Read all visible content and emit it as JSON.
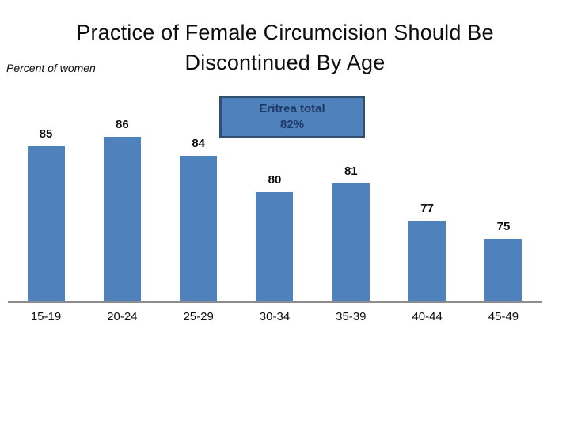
{
  "header": {
    "title_line1": "Practice of Female Circumcision Should Be",
    "title_line2": "Discontinued By Age"
  },
  "chart_data": {
    "type": "bar",
    "title": "Practice of Female Circumcision Should Be Discontinued By Age",
    "ylabel": "Percent of women",
    "xlabel": "",
    "categories": [
      "15-19",
      "20-24",
      "25-29",
      "30-34",
      "35-39",
      "40-44",
      "45-49"
    ],
    "values": [
      85,
      86,
      84,
      80,
      81,
      77,
      75
    ],
    "data_labels": true,
    "grid": false,
    "ylim": [
      68,
      88
    ],
    "annotation": {
      "label": "Eritrea total",
      "value": "82%"
    },
    "bar_color": "#4F81BD"
  },
  "colors": {
    "bar": "#4F81BD",
    "box_fill": "#4F81BD",
    "box_border": "#31506F",
    "box_text": "#1F3864",
    "axis_line": "#8C8C8C",
    "text": "#0d0d0d"
  }
}
